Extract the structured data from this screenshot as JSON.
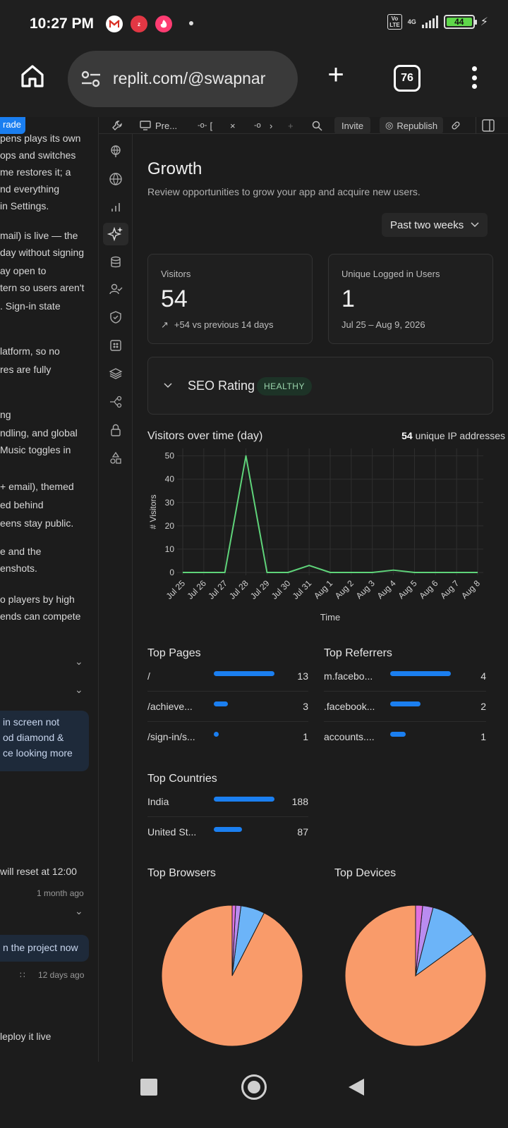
{
  "status_bar": {
    "time": "10:27 PM",
    "network": "4G",
    "volte": "Vo LTE",
    "battery": "44"
  },
  "browser": {
    "url": "replit.com/@swapnar",
    "tab_count": "76"
  },
  "chat": {
    "upgrade_label": "rade",
    "lines": [
      "pens plays its own",
      "ops and switches",
      "me restores it; a",
      "nd everything",
      "in Settings.",
      "mail) is live — the",
      "day without signing",
      "ay open to",
      "tern so users aren't",
      ". Sign-in state",
      "latform, so no",
      "res are fully",
      "ng",
      "ndling, and global",
      "Music toggles in",
      " + email), themed",
      "ed behind",
      "eens stay public.",
      "e and the",
      "enshots.",
      "o players by high",
      "ends can compete"
    ],
    "bubble1": [
      "in screen not",
      "od diamond &",
      "ce looking more"
    ],
    "time1": "1 month ago",
    "reset_line": "will reset at 12:00",
    "bubble2": "n the project now",
    "time2": "12 days ago",
    "deploy_line": "leploy it live"
  },
  "toolbar": {
    "preview": "Pre...",
    "tab1": "[",
    "invite": "Invite",
    "republish": "Republish"
  },
  "growth": {
    "title": "Growth",
    "subtitle": "Review opportunities to grow your app and acquire new users.",
    "range": "Past two weeks",
    "visitors": {
      "label": "Visitors",
      "value": "54",
      "delta": "+54 vs previous 14 days"
    },
    "logged_in": {
      "label": "Unique Logged in Users",
      "value": "1",
      "range": "Jul 25 – Aug 9, 2026"
    },
    "seo": {
      "label": "SEO Rating",
      "status": "HEALTHY"
    },
    "chart_title": "Visitors over time (day)",
    "unique_count": "54",
    "unique_label": "unique IP addresses",
    "top_pages": {
      "title": "Top Pages",
      "rows": [
        {
          "label": "/",
          "value": "13"
        },
        {
          "label": "/achieve...",
          "value": "3"
        },
        {
          "label": "/sign-in/s...",
          "value": "1"
        }
      ]
    },
    "top_referrers": {
      "title": "Top Referrers",
      "rows": [
        {
          "label": "m.facebo...",
          "value": "4"
        },
        {
          "label": ".facebook...",
          "value": "2"
        },
        {
          "label": "accounts....",
          "value": "1"
        }
      ]
    },
    "top_countries": {
      "title": "Top Countries",
      "rows": [
        {
          "label": "India",
          "value": "188"
        },
        {
          "label": "United St...",
          "value": "87"
        }
      ]
    },
    "top_browsers": {
      "title": "Top Browsers"
    },
    "top_devices": {
      "title": "Top Devices"
    }
  },
  "colors": {
    "accent": "#1b7ff0",
    "line": "#5fd47a",
    "pie_main": "#f99b6a",
    "pie_second": "#6cb4f8",
    "pie_third": "#b98cf0",
    "pie_fourth": "#e070e0"
  },
  "chart_data": [
    {
      "type": "line",
      "title": "Visitors over time (day)",
      "xlabel": "Time",
      "ylabel": "# Visitors",
      "x": [
        "Jul 25",
        "Jul 26",
        "Jul 27",
        "Jul 28",
        "Jul 29",
        "Jul 30",
        "Jul 31",
        "Aug 1",
        "Aug 2",
        "Aug 3",
        "Aug 4",
        "Aug 5",
        "Aug 6",
        "Aug 7",
        "Aug 8"
      ],
      "values": [
        0,
        0,
        0,
        50,
        0,
        0,
        3,
        0,
        0,
        0,
        1,
        0,
        0,
        0,
        0
      ],
      "yticks": [
        0,
        10,
        20,
        30,
        40,
        50
      ],
      "ylim": [
        0,
        52
      ],
      "grid": true
    },
    {
      "type": "bar",
      "title": "Top Pages",
      "categories": [
        "/",
        "/achieve...",
        "/sign-in/s..."
      ],
      "values": [
        13,
        3,
        1
      ]
    },
    {
      "type": "bar",
      "title": "Top Referrers",
      "categories": [
        "m.facebo...",
        ".facebook...",
        "accounts...."
      ],
      "values": [
        4,
        2,
        1
      ]
    },
    {
      "type": "bar",
      "title": "Top Countries",
      "categories": [
        "India",
        "United St..."
      ],
      "values": [
        188,
        87
      ]
    },
    {
      "type": "pie",
      "title": "Top Browsers",
      "values": [
        92.5,
        5.5,
        1.2,
        0.8
      ],
      "colors": [
        "#f99b6a",
        "#6cb4f8",
        "#b98cf0",
        "#e070e0"
      ]
    },
    {
      "type": "pie",
      "title": "Top Devices",
      "values": [
        85,
        11,
        2.4,
        1.6
      ],
      "colors": [
        "#f99b6a",
        "#6cb4f8",
        "#b98cf0",
        "#e070e0"
      ]
    }
  ]
}
